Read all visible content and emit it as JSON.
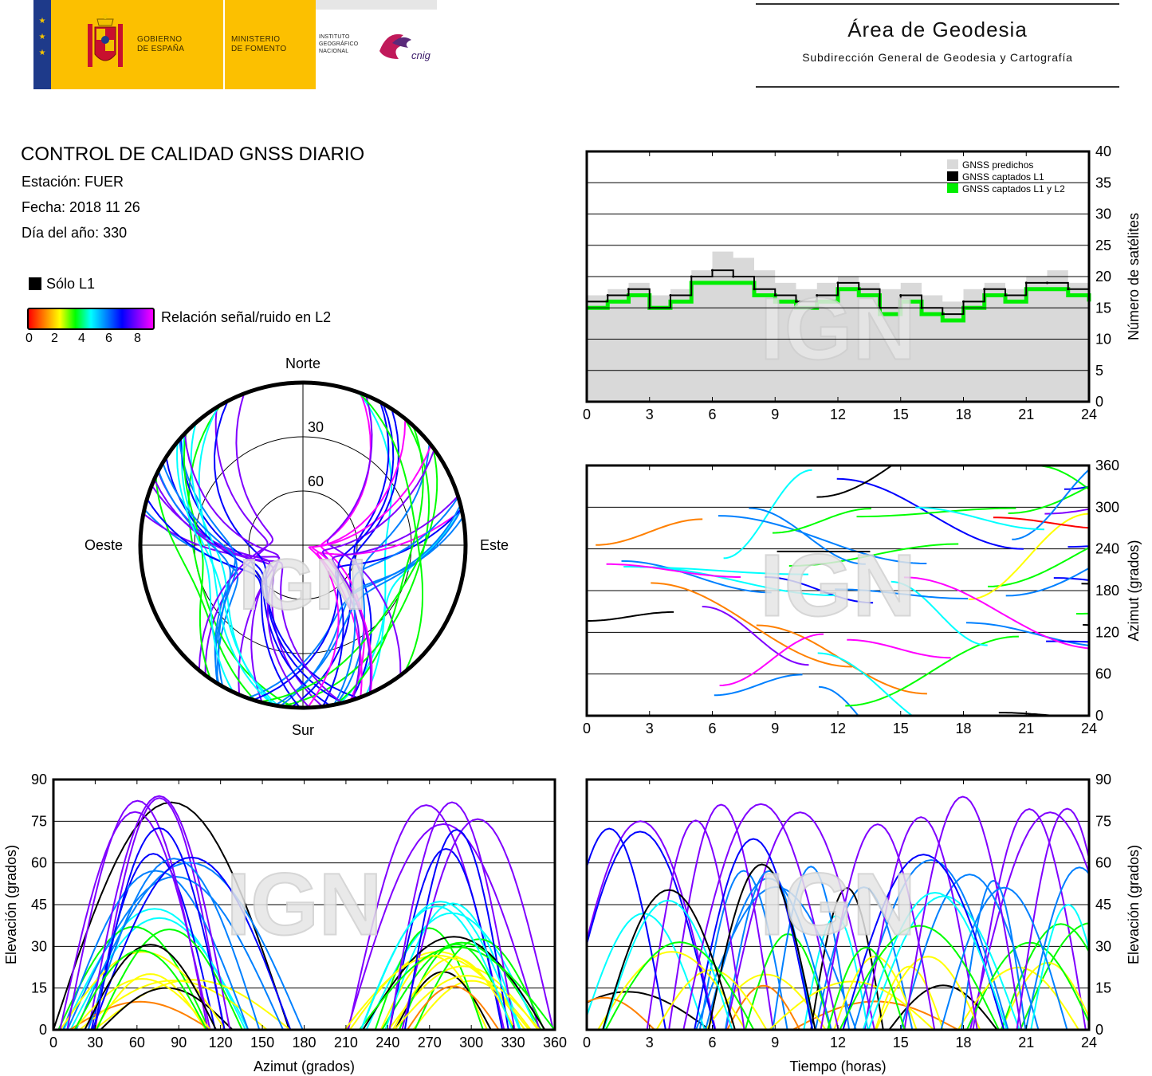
{
  "header": {
    "gov_line1": "GOBIERNO",
    "gov_line2": "DE ESPAÑA",
    "ministry_line1": "MINISTERIO",
    "ministry_line2": "DE FOMENTO",
    "institute_line1": "INSTITUTO",
    "institute_line2": "GEOGRÁFICO",
    "institute_line3": "NACIONAL",
    "cnig_logo_text": "cnig",
    "area_title": "Área de Geodesia",
    "area_subtitle": "Subdirección General de Geodesia y Cartografía"
  },
  "report": {
    "title": "CONTROL DE CALIDAD GNSS DIARIO",
    "station": "Estación: FUER",
    "date": "Fecha: 2018 11 26",
    "day_of_year": "Día del año: 330"
  },
  "legend": {
    "l1_only": "Sólo L1",
    "snr_label": "Relación señal/ruido en L2",
    "snr_ticks": [
      "0",
      "2",
      "4",
      "6",
      "8"
    ]
  },
  "watermark": "IGN",
  "colors": {
    "predicted": "#d9d9d9",
    "captured_l1": "#000000",
    "captured_l1_l2": "#00ee00",
    "snr_scale": [
      "#ff0000",
      "#ff8000",
      "#ffff00",
      "#00ff00",
      "#00ffff",
      "#0080ff",
      "#0000ff",
      "#8000ff",
      "#ff00ff"
    ]
  },
  "chart_data": [
    {
      "id": "satellites",
      "type": "area",
      "title": "",
      "xlabel": "",
      "ylabel": "Número de satélites",
      "xlim": [
        0,
        24
      ],
      "ylim": [
        0,
        40
      ],
      "xticks": [
        "0",
        "3",
        "6",
        "9",
        "12",
        "15",
        "18",
        "21",
        "24"
      ],
      "yticks": [
        "0",
        "5",
        "10",
        "15",
        "20",
        "25",
        "30",
        "35",
        "40"
      ],
      "grid": true,
      "legend_position": "top-right",
      "x": [
        0,
        1,
        2,
        3,
        4,
        5,
        6,
        7,
        8,
        9,
        10,
        11,
        12,
        13,
        14,
        15,
        16,
        17,
        18,
        19,
        20,
        21,
        22,
        23,
        24
      ],
      "series": [
        {
          "name": "GNSS predichos",
          "values": [
            17,
            18,
            19,
            17,
            18,
            21,
            24,
            23,
            21,
            19,
            18,
            19,
            20,
            19,
            18,
            19,
            17,
            16,
            18,
            19,
            18,
            20,
            21,
            19,
            18
          ]
        },
        {
          "name": "GNSS captados L1",
          "values": [
            16,
            17,
            18,
            15,
            17,
            20,
            21,
            20,
            18,
            17,
            16,
            17,
            19,
            18,
            15,
            17,
            15,
            14,
            16,
            18,
            17,
            19,
            19,
            18,
            17
          ]
        },
        {
          "name": "GNSS captados L1 y L2",
          "values": [
            15,
            16,
            17,
            15,
            16,
            19,
            19,
            19,
            17,
            16,
            15,
            16,
            18,
            17,
            14,
            16,
            14,
            13,
            15,
            17,
            16,
            18,
            18,
            17,
            16
          ]
        }
      ]
    },
    {
      "id": "skyplot",
      "type": "scatter",
      "title": "",
      "directions": {
        "north": "Norte",
        "south": "Sur",
        "east": "Este",
        "west": "Oeste"
      },
      "elevation_rings": [
        "30",
        "60"
      ]
    },
    {
      "id": "azimuth-time",
      "type": "scatter",
      "title": "",
      "xlabel": "",
      "ylabel": "Azimut (grados)",
      "xlim": [
        0,
        24
      ],
      "ylim": [
        0,
        360
      ],
      "xticks": [
        "0",
        "3",
        "6",
        "9",
        "12",
        "15",
        "18",
        "21",
        "24"
      ],
      "yticks": [
        "0",
        "60",
        "120",
        "180",
        "240",
        "300",
        "360"
      ],
      "grid": true
    },
    {
      "id": "elevation-azimuth",
      "type": "scatter",
      "title": "",
      "xlabel": "Azimut (grados)",
      "ylabel": "Elevación (grados)",
      "xlim": [
        0,
        360
      ],
      "ylim": [
        0,
        90
      ],
      "xticks": [
        "0",
        "30",
        "60",
        "90",
        "120",
        "150",
        "180",
        "210",
        "240",
        "270",
        "300",
        "330",
        "360"
      ],
      "yticks": [
        "0",
        "15",
        "30",
        "45",
        "60",
        "75",
        "90"
      ],
      "grid": true
    },
    {
      "id": "elevation-time",
      "type": "line",
      "title": "",
      "xlabel": "Tiempo (horas)",
      "ylabel": "Elevación (grados)",
      "xlim": [
        0,
        24
      ],
      "ylim": [
        0,
        90
      ],
      "xticks": [
        "0",
        "3",
        "6",
        "9",
        "12",
        "15",
        "18",
        "21",
        "24"
      ],
      "yticks": [
        "0",
        "15",
        "30",
        "45",
        "60",
        "75",
        "90"
      ],
      "grid": true
    }
  ]
}
